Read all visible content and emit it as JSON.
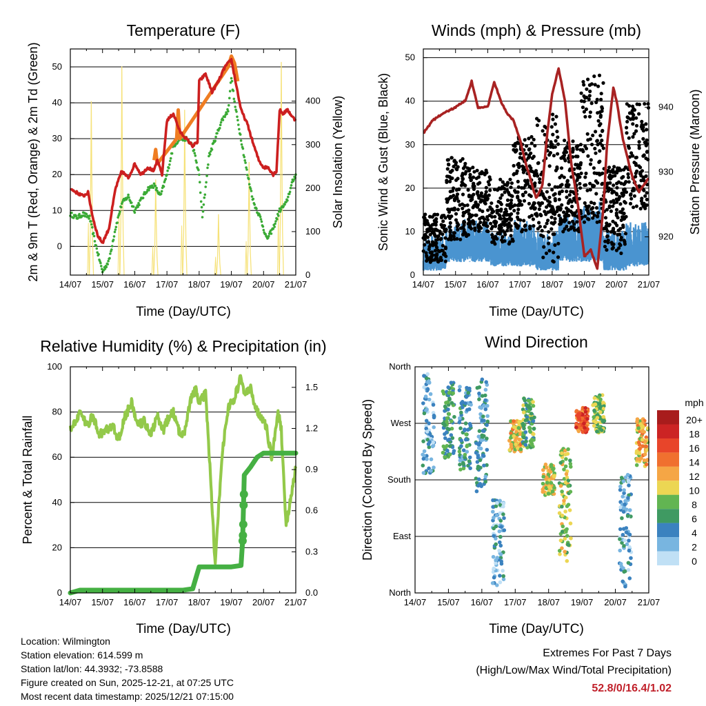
{
  "chart_data": [
    {
      "type": "line",
      "id": "temperature",
      "title": "Temperature (F)",
      "xlabel": "Time (Day/UTC)",
      "ylabel": "2m & 9m T (Red, Orange) & 2m Td (Green)",
      "ylabel_right": "Solar Insolation (Yellow)",
      "x_ticks": [
        "14/07",
        "15/07",
        "16/07",
        "17/07",
        "18/07",
        "19/07",
        "20/07",
        "21/07"
      ],
      "ylim": [
        -8,
        55
      ],
      "y_ticks": [
        0,
        10,
        20,
        30,
        40,
        50
      ],
      "ylim_right": [
        0,
        520
      ],
      "y_ticks_right": [
        0,
        100,
        200,
        300,
        400
      ],
      "colors": {
        "t2m": "#cc1f1f",
        "t9m": "#ef7d22",
        "td2m": "#3aaa35",
        "solar": "#f6e27a"
      },
      "series": [
        {
          "name": "2m T",
          "x": [
            0,
            0.2,
            0.4,
            0.55,
            0.7,
            0.85,
            1,
            1.2,
            1.4,
            1.6,
            1.8,
            2,
            2.2,
            2.4,
            2.6,
            2.7,
            2.85,
            3,
            3.2,
            3.4,
            3.6,
            3.8,
            3.95,
            4,
            4.2,
            4.4,
            4.6,
            4.8,
            5,
            5.15,
            5.3,
            5.5,
            5.7,
            5.85,
            6,
            6.15,
            6.3,
            6.4,
            6.5,
            6.6,
            6.75,
            6.9,
            7
          ],
          "values": [
            16,
            15,
            14,
            15,
            8,
            3,
            1,
            5,
            16,
            21,
            19,
            23,
            20,
            22,
            21,
            24,
            20,
            35,
            37,
            32,
            30,
            28,
            29,
            46,
            48,
            43,
            46,
            50,
            52,
            45,
            38,
            34,
            28,
            24,
            22,
            22,
            20,
            21,
            38,
            37,
            38,
            36,
            35
          ]
        },
        {
          "name": "9m T",
          "x": [
            2.6,
            2.65,
            2.7,
            3.3,
            3.35,
            3.4,
            4.9,
            5,
            5.1,
            5.2
          ],
          "values": [
            24,
            27,
            23,
            30,
            38,
            30,
            50,
            53,
            51,
            46
          ]
        },
        {
          "name": "2m Td",
          "x": [
            0,
            0.2,
            0.4,
            0.6,
            0.8,
            1,
            1.2,
            1.4,
            1.6,
            1.8,
            2,
            2.2,
            2.4,
            2.6,
            2.8,
            3,
            3.2,
            3.4,
            3.6,
            3.8,
            4,
            4.1,
            4.3,
            4.5,
            4.7,
            4.9,
            5,
            5.1,
            5.3,
            5.5,
            5.7,
            5.9,
            6.1,
            6.3,
            6.5,
            6.7,
            6.9,
            7
          ],
          "values": [
            9,
            8,
            9,
            8,
            0,
            -7,
            -4,
            5,
            12,
            14,
            10,
            13,
            16,
            17,
            14,
            20,
            28,
            30,
            30,
            28,
            20,
            8,
            25,
            30,
            35,
            38,
            47,
            40,
            30,
            20,
            12,
            8,
            2,
            5,
            10,
            12,
            18,
            20
          ]
        },
        {
          "name": "Solar Insolation",
          "axis": "right",
          "peaks": [
            [
              0.65,
              400
            ],
            [
              1.6,
              480
            ],
            [
              2.65,
              220
            ],
            [
              3.55,
              380
            ],
            [
              4.6,
              140
            ],
            [
              5.55,
              260
            ],
            [
              6.55,
              490
            ]
          ]
        }
      ]
    },
    {
      "type": "scatter",
      "id": "winds",
      "title": "Winds (mph) & Pressure (mb)",
      "xlabel": "Time (Day/UTC)",
      "ylabel": "Sonic Wind & Gust (Blue, Black)",
      "ylabel_right": "Station Pressure (Maroon)",
      "x_ticks": [
        "14/07",
        "15/07",
        "16/07",
        "17/07",
        "18/07",
        "19/07",
        "20/07",
        "21/07"
      ],
      "ylim": [
        0,
        52
      ],
      "y_ticks": [
        0,
        10,
        20,
        30,
        40,
        50
      ],
      "ylim_right": [
        914.1,
        949
      ],
      "y_ticks_right": [
        920,
        930,
        940
      ],
      "colors": {
        "wind": "#4a94d0",
        "gust": "#000000",
        "pressure": "#a82222"
      },
      "series": [
        {
          "name": "Pressure",
          "axis": "right",
          "x": [
            0,
            0.3,
            0.6,
            1,
            1.3,
            1.5,
            1.7,
            2,
            2.2,
            2.4,
            2.6,
            2.8,
            3,
            3.2,
            3.5,
            3.7,
            3.85,
            4,
            4.2,
            4.4,
            4.6,
            4.8,
            5,
            5.2,
            5.4,
            5.6,
            5.7,
            5.9,
            6,
            6.2,
            6.5,
            6.7,
            7
          ],
          "values": [
            936,
            938,
            939,
            940,
            941,
            944,
            940,
            940,
            944,
            941,
            939,
            938,
            935,
            931,
            926,
            928,
            936,
            942,
            946,
            941,
            931,
            925,
            917,
            918,
            915,
            925,
            934,
            943,
            941,
            935,
            929,
            927,
            929
          ]
        },
        {
          "name": "Sonic Wind",
          "range_by_day": [
            [
              1,
              8
            ],
            [
              3,
              11
            ],
            [
              3,
              11
            ],
            [
              2,
              9
            ],
            [
              2,
              11
            ],
            [
              1,
              9
            ],
            [
              3,
              13
            ],
            [
              3,
              16
            ],
            [
              1,
              9
            ],
            [
              2,
              11
            ]
          ]
        },
        {
          "name": "Gust",
          "range_by_day": [
            [
              3,
              14
            ],
            [
              8,
              27
            ],
            [
              10,
              25
            ],
            [
              7,
              22
            ],
            [
              10,
              32
            ],
            [
              3,
              37
            ],
            [
              10,
              31
            ],
            [
              12,
              46
            ],
            [
              5,
              25
            ],
            [
              15,
              40
            ]
          ]
        }
      ]
    },
    {
      "type": "line",
      "id": "humidity",
      "title": "Relative Humidity (%) & Precipitation (in)",
      "xlabel": "Time (Day/UTC)",
      "ylabel": "Percent & Total Rainfall",
      "x_ticks": [
        "14/07",
        "15/07",
        "16/07",
        "17/07",
        "18/07",
        "19/07",
        "20/07",
        "21/07"
      ],
      "ylim": [
        0,
        100
      ],
      "y_ticks": [
        0,
        20,
        40,
        60,
        80,
        100
      ],
      "ylim_right": [
        0,
        1.65
      ],
      "y_ticks_right": [
        "0.0",
        "0.3",
        "0.6",
        "0.9",
        "1.2",
        "1.5"
      ],
      "colors": {
        "rh": "#93c94a",
        "precip": "#45b043"
      },
      "series": [
        {
          "name": "Relative Humidity",
          "x": [
            0,
            0.3,
            0.5,
            0.7,
            0.9,
            1.1,
            1.3,
            1.5,
            1.7,
            1.9,
            2.1,
            2.3,
            2.5,
            2.7,
            2.9,
            3,
            3.2,
            3.4,
            3.55,
            3.75,
            3.9,
            4,
            4.2,
            4.35,
            4.5,
            4.7,
            4.9,
            5.1,
            5.3,
            5.4,
            5.6,
            5.8,
            5.95,
            6.1,
            6.25,
            6.45,
            6.55,
            6.7,
            6.85,
            7
          ],
          "values": [
            72,
            80,
            74,
            78,
            70,
            72,
            74,
            68,
            78,
            84,
            74,
            76,
            70,
            78,
            72,
            76,
            80,
            70,
            72,
            86,
            90,
            84,
            88,
            52,
            12,
            60,
            82,
            86,
            96,
            88,
            90,
            80,
            78,
            72,
            60,
            80,
            72,
            30,
            42,
            55
          ]
        },
        {
          "name": "Total Precipitation",
          "axis": "right",
          "x": [
            0,
            0.3,
            3.5,
            3.8,
            4,
            4.4,
            4.5,
            5,
            5.3,
            5.35,
            5.4,
            5.6,
            5.8,
            6,
            6.2,
            7
          ],
          "values": [
            0,
            0.02,
            0.02,
            0.03,
            0.19,
            0.19,
            0.19,
            0.19,
            0.2,
            0.38,
            0.86,
            0.92,
            0.99,
            1.02,
            1.02,
            1.02
          ]
        }
      ]
    },
    {
      "type": "scatter",
      "id": "wind_direction",
      "title": "Wind Direction",
      "xlabel": "Time (Day/UTC)",
      "ylabel": "Direction (Colored By Speed)",
      "x_ticks": [
        "14/07",
        "15/07",
        "16/07",
        "17/07",
        "18/07",
        "19/07",
        "20/07",
        "21/07"
      ],
      "ylim": [
        0,
        360
      ],
      "y_ticks": [
        [
          "North",
          0
        ],
        [
          "East",
          90
        ],
        [
          "South",
          180
        ],
        [
          "West",
          270
        ],
        [
          "North",
          360
        ]
      ],
      "clusters": [
        {
          "day": 0.4,
          "dir_center": 270,
          "spread": 80,
          "speed": 3
        },
        {
          "day": 1.0,
          "dir_center": 275,
          "spread": 60,
          "speed": 6
        },
        {
          "day": 1.5,
          "dir_center": 260,
          "spread": 70,
          "speed": 5
        },
        {
          "day": 2.0,
          "dir_center": 250,
          "spread": 90,
          "speed": 4
        },
        {
          "day": 2.5,
          "dir_center": 80,
          "spread": 70,
          "speed": 3
        },
        {
          "day": 3.0,
          "dir_center": 250,
          "spread": 25,
          "speed": 11
        },
        {
          "day": 3.4,
          "dir_center": 270,
          "spread": 40,
          "speed": 7
        },
        {
          "day": 4.0,
          "dir_center": 180,
          "spread": 25,
          "speed": 10
        },
        {
          "day": 4.5,
          "dir_center": 140,
          "spread": 90,
          "speed": 9
        },
        {
          "day": 5.0,
          "dir_center": 275,
          "spread": 20,
          "speed": 15
        },
        {
          "day": 5.5,
          "dir_center": 285,
          "spread": 30,
          "speed": 8
        },
        {
          "day": 6.3,
          "dir_center": 100,
          "spread": 90,
          "speed": 3
        },
        {
          "day": 6.8,
          "dir_center": 240,
          "spread": 40,
          "speed": 11
        }
      ],
      "colorbar": {
        "title": "mph",
        "labels": [
          "20+",
          "18",
          "16",
          "14",
          "12",
          "10",
          "8",
          "6",
          "4",
          "2",
          "0"
        ],
        "colors": [
          "#a81c1c",
          "#cc2424",
          "#e8452a",
          "#f0702f",
          "#f5a645",
          "#ecd653",
          "#62b552",
          "#3f9a62",
          "#3b82bf",
          "#78b5e0",
          "#c0e0f5"
        ]
      }
    }
  ],
  "info": {
    "location": "Location: Wilmington",
    "elevation": "Station elevation: 614.599 m",
    "latlon": "Station lat/lon: 44.3932; -73.8588",
    "created": "Figure created on Sun, 2025-12-21, at 07:25 UTC",
    "recent": "Most recent data timestamp: 2025/12/21 07:15:00"
  },
  "extremes": {
    "title": "Extremes For Past 7 Days",
    "subtitle": "(High/Low/Max Wind/Total Precipitation)",
    "values": "52.8/0/16.4/1.02",
    "value_color": "#c0202a"
  }
}
